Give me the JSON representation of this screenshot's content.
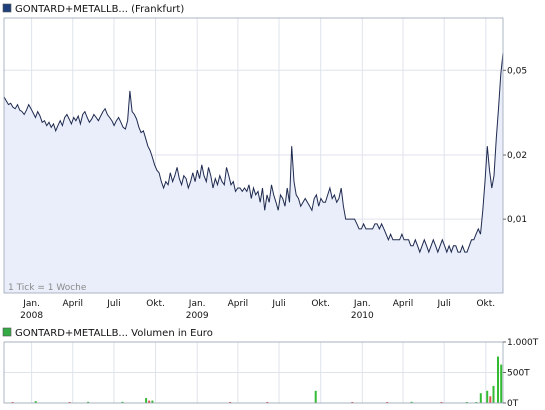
{
  "colors": {
    "price_line": "#1f2a4f",
    "price_fill": "#e9eefa",
    "grid": "#dfe3ec",
    "frame": "#9aa3b5",
    "legend_price": "#1f3f7a",
    "legend_volume": "#33aa44",
    "volume_up": "#33bb33",
    "volume_down": "#e05050"
  },
  "chart_data": [
    {
      "type": "line",
      "title": "GONTARD+METALLB... (Frankfurt)",
      "note": "1 Tick = 1 Woche",
      "y_scale": "log",
      "ylim": [
        0.0045,
        0.088
      ],
      "y_ticks": [
        {
          "value": 0.01,
          "label": "0,01"
        },
        {
          "value": 0.02,
          "label": "0,02"
        },
        {
          "value": 0.05,
          "label": "0,05"
        }
      ],
      "x_range": [
        "2007-11-01",
        "2010-11-08"
      ],
      "x_ticks": [
        {
          "date": "2008-01-01",
          "label": "Jan.",
          "year": "2008"
        },
        {
          "date": "2008-04-01",
          "label": "April"
        },
        {
          "date": "2008-07-01",
          "label": "Juli"
        },
        {
          "date": "2008-10-01",
          "label": "Okt."
        },
        {
          "date": "2009-01-01",
          "label": "Jan.",
          "year": "2009"
        },
        {
          "date": "2009-04-01",
          "label": "April"
        },
        {
          "date": "2009-07-01",
          "label": "Juli"
        },
        {
          "date": "2009-10-01",
          "label": "Okt."
        },
        {
          "date": "2010-01-01",
          "label": "Jan.",
          "year": "2010"
        },
        {
          "date": "2010-04-01",
          "label": "April"
        },
        {
          "date": "2010-07-01",
          "label": "Juli"
        },
        {
          "date": "2010-10-01",
          "label": "Okt."
        }
      ],
      "series": [
        {
          "start": "2007-11-01",
          "end": "2010-11-08",
          "values": [
            0.0375,
            0.036,
            0.0345,
            0.035,
            0.0335,
            0.033,
            0.0345,
            0.0325,
            0.032,
            0.031,
            0.0325,
            0.0345,
            0.033,
            0.0315,
            0.03,
            0.032,
            0.0305,
            0.0285,
            0.029,
            0.0275,
            0.0285,
            0.027,
            0.028,
            0.026,
            0.0275,
            0.029,
            0.0275,
            0.03,
            0.031,
            0.0295,
            0.028,
            0.03,
            0.029,
            0.0305,
            0.028,
            0.031,
            0.032,
            0.03,
            0.0285,
            0.0295,
            0.031,
            0.03,
            0.029,
            0.0305,
            0.032,
            0.033,
            0.031,
            0.03,
            0.029,
            0.0275,
            0.029,
            0.03,
            0.0285,
            0.027,
            0.0265,
            0.029,
            0.04,
            0.032,
            0.031,
            0.0295,
            0.027,
            0.0255,
            0.026,
            0.024,
            0.022,
            0.021,
            0.0195,
            0.018,
            0.017,
            0.0165,
            0.015,
            0.014,
            0.015,
            0.0145,
            0.0165,
            0.015,
            0.016,
            0.0175,
            0.0155,
            0.0145,
            0.016,
            0.0155,
            0.014,
            0.015,
            0.0165,
            0.015,
            0.017,
            0.0155,
            0.018,
            0.016,
            0.015,
            0.0175,
            0.016,
            0.014,
            0.0155,
            0.0145,
            0.016,
            0.015,
            0.0145,
            0.0175,
            0.016,
            0.0145,
            0.015,
            0.0135,
            0.014,
            0.014,
            0.0135,
            0.014,
            0.0135,
            0.0145,
            0.0125,
            0.014,
            0.013,
            0.0135,
            0.012,
            0.014,
            0.011,
            0.013,
            0.012,
            0.0145,
            0.013,
            0.012,
            0.011,
            0.013,
            0.0125,
            0.0115,
            0.014,
            0.012,
            0.022,
            0.015,
            0.013,
            0.0125,
            0.0115,
            0.012,
            0.0125,
            0.012,
            0.0115,
            0.011,
            0.0125,
            0.013,
            0.0115,
            0.0125,
            0.012,
            0.012,
            0.013,
            0.014,
            0.0125,
            0.013,
            0.012,
            0.0125,
            0.014,
            0.0115,
            0.01,
            0.01,
            0.01,
            0.01,
            0.01,
            0.0095,
            0.009,
            0.009,
            0.0095,
            0.009,
            0.009,
            0.009,
            0.009,
            0.0095,
            0.0095,
            0.009,
            0.0095,
            0.009,
            0.0085,
            0.008,
            0.0085,
            0.008,
            0.008,
            0.008,
            0.008,
            0.0085,
            0.008,
            0.008,
            0.008,
            0.0075,
            0.0075,
            0.008,
            0.0075,
            0.007,
            0.0075,
            0.008,
            0.0075,
            0.007,
            0.0075,
            0.008,
            0.0075,
            0.007,
            0.0075,
            0.008,
            0.0075,
            0.007,
            0.0075,
            0.007,
            0.0075,
            0.0075,
            0.007,
            0.007,
            0.0075,
            0.007,
            0.007,
            0.0075,
            0.008,
            0.008,
            0.0085,
            0.009,
            0.0085,
            0.011,
            0.015,
            0.022,
            0.017,
            0.014,
            0.016,
            0.024,
            0.033,
            0.048,
            0.06
          ]
        }
      ]
    },
    {
      "type": "bar",
      "title": "GONTARD+METALLB... Volumen in Euro",
      "ylim": [
        0,
        1000000
      ],
      "y_ticks": [
        {
          "value": 0,
          "label": "0T"
        },
        {
          "value": 500000,
          "label": "500T"
        },
        {
          "value": 1000000,
          "label": "1.000T"
        }
      ],
      "bars": [
        {
          "date": "2007-11-20",
          "value": 15000,
          "dir": "down"
        },
        {
          "date": "2008-01-10",
          "value": 30000,
          "dir": "up"
        },
        {
          "date": "2008-03-25",
          "value": 10000,
          "dir": "down"
        },
        {
          "date": "2008-05-05",
          "value": 20000,
          "dir": "up"
        },
        {
          "date": "2008-07-20",
          "value": 20000,
          "dir": "up"
        },
        {
          "date": "2008-09-10",
          "value": 80000,
          "dir": "up"
        },
        {
          "date": "2008-09-17",
          "value": 40000,
          "dir": "down"
        },
        {
          "date": "2008-09-24",
          "value": 40000,
          "dir": "up"
        },
        {
          "date": "2009-03-15",
          "value": 10000,
          "dir": "down"
        },
        {
          "date": "2009-06-05",
          "value": 10000,
          "dir": "down"
        },
        {
          "date": "2009-09-20",
          "value": 200000,
          "dir": "up"
        },
        {
          "date": "2009-12-10",
          "value": 10000,
          "dir": "down"
        },
        {
          "date": "2010-02-25",
          "value": 10000,
          "dir": "down"
        },
        {
          "date": "2010-04-20",
          "value": 20000,
          "dir": "up"
        },
        {
          "date": "2010-06-25",
          "value": 10000,
          "dir": "down"
        },
        {
          "date": "2010-08-20",
          "value": 15000,
          "dir": "up"
        },
        {
          "date": "2010-09-10",
          "value": 10000,
          "dir": "up"
        },
        {
          "date": "2010-09-20",
          "value": 160000,
          "dir": "up"
        },
        {
          "date": "2010-10-04",
          "value": 200000,
          "dir": "up"
        },
        {
          "date": "2010-10-11",
          "value": 110000,
          "dir": "down"
        },
        {
          "date": "2010-10-18",
          "value": 280000,
          "dir": "up"
        },
        {
          "date": "2010-10-28",
          "value": 760000,
          "dir": "up"
        },
        {
          "date": "2010-11-04",
          "value": 630000,
          "dir": "up"
        }
      ]
    }
  ]
}
